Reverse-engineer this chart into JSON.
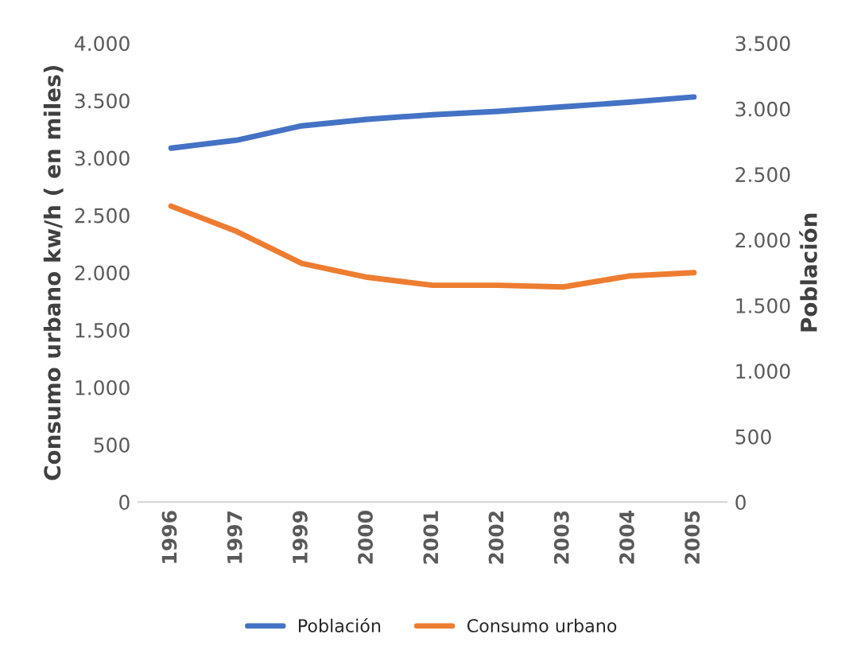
{
  "chart_data": {
    "type": "line",
    "categories": [
      "1996",
      "1997",
      "1999",
      "2000",
      "2001",
      "2002",
      "2003",
      "2004",
      "2005"
    ],
    "series": [
      {
        "name": "Población",
        "color": "#4472c4",
        "axis": "y2",
        "values": [
          2700,
          2760,
          2870,
          2920,
          2955,
          2980,
          3015,
          3050,
          3090
        ]
      },
      {
        "name": "Consumo urbano",
        "color": "#ed7d31",
        "values": [
          2580,
          2360,
          2080,
          1960,
          1890,
          1890,
          1875,
          1970,
          2000
        ]
      }
    ],
    "ylabel": "Consumo urbano kw/h ( en miles)",
    "y2label": "Población",
    "ylim": [
      0,
      4000
    ],
    "yticks": [
      0,
      {
        "value": 500,
        "label": "500"
      },
      {
        "value": 1000,
        "label": "1.000"
      },
      {
        "value": 1500,
        "label": "1.500"
      },
      {
        "value": 2000,
        "label": "2.000"
      },
      {
        "value": 2500,
        "label": "2.500"
      },
      {
        "value": 3000,
        "label": "3.000"
      },
      {
        "value": 3500,
        "label": "3.500"
      },
      {
        "value": 4000,
        "label": "4.000"
      }
    ],
    "y2lim": [
      0,
      3500
    ],
    "y2ticks": [
      0,
      {
        "value": 500,
        "label": "500"
      },
      {
        "value": 1000,
        "label": "1.000"
      },
      {
        "value": 1500,
        "label": "1.500"
      },
      {
        "value": 2000,
        "label": "2.000"
      },
      {
        "value": 2500,
        "label": "2.500"
      },
      {
        "value": 3000,
        "label": "3.000"
      },
      {
        "value": 3500,
        "label": "3.500"
      }
    ],
    "legend": "bottom",
    "grid": false,
    "marker": "none",
    "line_style": "solid"
  }
}
